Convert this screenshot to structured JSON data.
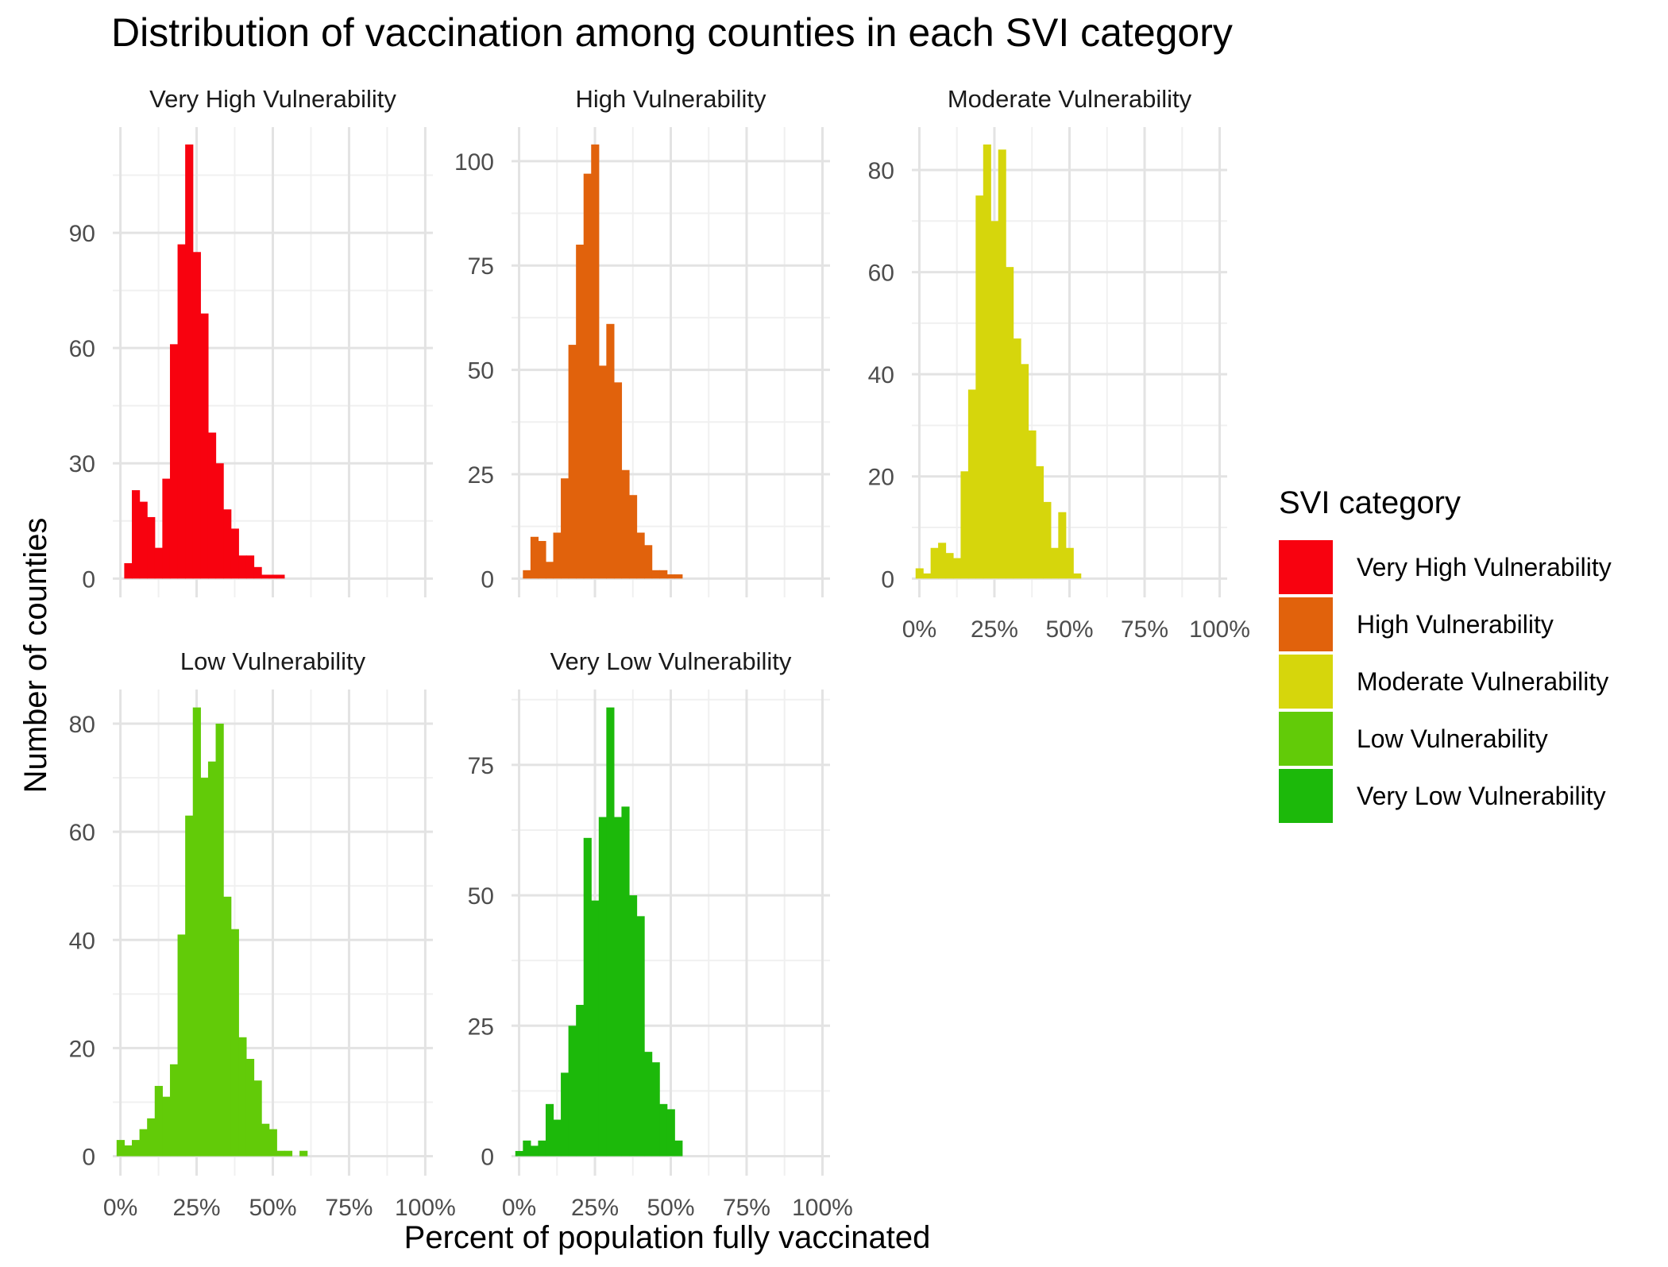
{
  "title": "Distribution of vaccination among counties in each SVI category",
  "x_axis_title": "Percent of population fully vaccinated",
  "y_axis_title": "Number of counties",
  "legend": {
    "title": "SVI category",
    "position": "right",
    "items": [
      {
        "label": "Very High Vulnerability",
        "color": "#F8020F"
      },
      {
        "label": "High Vulnerability",
        "color": "#E1620C"
      },
      {
        "label": "Moderate Vulnerability",
        "color": "#D6D60C"
      },
      {
        "label": "Low Vulnerability",
        "color": "#62CB08"
      },
      {
        "label": "Very Low Vulnerability",
        "color": "#1CB90A"
      }
    ]
  },
  "chart_data": {
    "type": "histogram",
    "layout": "facet_wrap 3 columns, free y scales",
    "bin_width": 2.5,
    "x_range": [
      -2.5,
      102.5
    ],
    "x_ticks": [
      0,
      25,
      50,
      75,
      100
    ],
    "x_tick_labels": [
      "0%",
      "25%",
      "50%",
      "75%",
      "100%"
    ],
    "grid": true,
    "panels": [
      {
        "name": "Very High Vulnerability",
        "color": "#F8020F",
        "y_range": [
          0,
          113
        ],
        "y_ticks": [
          0,
          30,
          60,
          90
        ],
        "bins": [
          {
            "x": 2.5,
            "count": 4
          },
          {
            "x": 5,
            "count": 23
          },
          {
            "x": 7.5,
            "count": 20
          },
          {
            "x": 10,
            "count": 16
          },
          {
            "x": 12.5,
            "count": 8
          },
          {
            "x": 15,
            "count": 26
          },
          {
            "x": 17.5,
            "count": 61
          },
          {
            "x": 20,
            "count": 87
          },
          {
            "x": 22.5,
            "count": 113
          },
          {
            "x": 25,
            "count": 85
          },
          {
            "x": 27.5,
            "count": 69
          },
          {
            "x": 30,
            "count": 38
          },
          {
            "x": 32.5,
            "count": 30
          },
          {
            "x": 35,
            "count": 18
          },
          {
            "x": 37.5,
            "count": 13
          },
          {
            "x": 40,
            "count": 6
          },
          {
            "x": 42.5,
            "count": 6
          },
          {
            "x": 45,
            "count": 3
          },
          {
            "x": 47.5,
            "count": 1
          },
          {
            "x": 50,
            "count": 1
          },
          {
            "x": 52.5,
            "count": 1
          }
        ]
      },
      {
        "name": "High Vulnerability",
        "color": "#E1620C",
        "y_range": [
          0,
          104
        ],
        "y_ticks": [
          0,
          25,
          50,
          75,
          100
        ],
        "bins": [
          {
            "x": 2.5,
            "count": 2
          },
          {
            "x": 5,
            "count": 10
          },
          {
            "x": 7.5,
            "count": 9
          },
          {
            "x": 10,
            "count": 4
          },
          {
            "x": 12.5,
            "count": 11
          },
          {
            "x": 15,
            "count": 24
          },
          {
            "x": 17.5,
            "count": 56
          },
          {
            "x": 20,
            "count": 80
          },
          {
            "x": 22.5,
            "count": 97
          },
          {
            "x": 25,
            "count": 104
          },
          {
            "x": 27.5,
            "count": 51
          },
          {
            "x": 30,
            "count": 61
          },
          {
            "x": 32.5,
            "count": 47
          },
          {
            "x": 35,
            "count": 26
          },
          {
            "x": 37.5,
            "count": 20
          },
          {
            "x": 40,
            "count": 11
          },
          {
            "x": 42.5,
            "count": 8
          },
          {
            "x": 45,
            "count": 2
          },
          {
            "x": 47.5,
            "count": 2
          },
          {
            "x": 50,
            "count": 1
          },
          {
            "x": 52.5,
            "count": 1
          }
        ]
      },
      {
        "name": "Moderate Vulnerability",
        "color": "#D6D60C",
        "y_range": [
          0,
          85
        ],
        "y_ticks": [
          0,
          20,
          40,
          60,
          80
        ],
        "bins": [
          {
            "x": 0,
            "count": 2
          },
          {
            "x": 2.5,
            "count": 1
          },
          {
            "x": 5,
            "count": 6
          },
          {
            "x": 7.5,
            "count": 7
          },
          {
            "x": 10,
            "count": 5
          },
          {
            "x": 12.5,
            "count": 4
          },
          {
            "x": 15,
            "count": 21
          },
          {
            "x": 17.5,
            "count": 37
          },
          {
            "x": 20,
            "count": 75
          },
          {
            "x": 22.5,
            "count": 85
          },
          {
            "x": 25,
            "count": 70
          },
          {
            "x": 27.5,
            "count": 84
          },
          {
            "x": 30,
            "count": 61
          },
          {
            "x": 32.5,
            "count": 47
          },
          {
            "x": 35,
            "count": 42
          },
          {
            "x": 37.5,
            "count": 29
          },
          {
            "x": 40,
            "count": 22
          },
          {
            "x": 42.5,
            "count": 15
          },
          {
            "x": 45,
            "count": 6
          },
          {
            "x": 47.5,
            "count": 13
          },
          {
            "x": 50,
            "count": 6
          },
          {
            "x": 52.5,
            "count": 1
          }
        ]
      },
      {
        "name": "Low Vulnerability",
        "color": "#62CB08",
        "y_range": [
          0,
          83
        ],
        "y_ticks": [
          0,
          20,
          40,
          60,
          80
        ],
        "bins": [
          {
            "x": 0,
            "count": 3
          },
          {
            "x": 2.5,
            "count": 2
          },
          {
            "x": 5,
            "count": 3
          },
          {
            "x": 7.5,
            "count": 5
          },
          {
            "x": 10,
            "count": 7
          },
          {
            "x": 12.5,
            "count": 13
          },
          {
            "x": 15,
            "count": 11
          },
          {
            "x": 17.5,
            "count": 17
          },
          {
            "x": 20,
            "count": 41
          },
          {
            "x": 22.5,
            "count": 63
          },
          {
            "x": 25,
            "count": 83
          },
          {
            "x": 27.5,
            "count": 70
          },
          {
            "x": 30,
            "count": 73
          },
          {
            "x": 32.5,
            "count": 80
          },
          {
            "x": 35,
            "count": 48
          },
          {
            "x": 37.5,
            "count": 42
          },
          {
            "x": 40,
            "count": 22
          },
          {
            "x": 42.5,
            "count": 18
          },
          {
            "x": 45,
            "count": 14
          },
          {
            "x": 47.5,
            "count": 6
          },
          {
            "x": 50,
            "count": 5
          },
          {
            "x": 52.5,
            "count": 1
          },
          {
            "x": 55,
            "count": 1
          },
          {
            "x": 57.5,
            "count": 0
          },
          {
            "x": 60,
            "count": 1
          }
        ]
      },
      {
        "name": "Very Low Vulnerability",
        "color": "#1CB90A",
        "y_range": [
          0,
          86
        ],
        "y_ticks": [
          0,
          25,
          50,
          75
        ],
        "bins": [
          {
            "x": 0,
            "count": 1
          },
          {
            "x": 2.5,
            "count": 3
          },
          {
            "x": 5,
            "count": 2
          },
          {
            "x": 7.5,
            "count": 3
          },
          {
            "x": 10,
            "count": 10
          },
          {
            "x": 12.5,
            "count": 7
          },
          {
            "x": 15,
            "count": 16
          },
          {
            "x": 17.5,
            "count": 25
          },
          {
            "x": 20,
            "count": 29
          },
          {
            "x": 22.5,
            "count": 61
          },
          {
            "x": 25,
            "count": 49
          },
          {
            "x": 27.5,
            "count": 65
          },
          {
            "x": 30,
            "count": 86
          },
          {
            "x": 32.5,
            "count": 65
          },
          {
            "x": 35,
            "count": 67
          },
          {
            "x": 37.5,
            "count": 50
          },
          {
            "x": 40,
            "count": 46
          },
          {
            "x": 42.5,
            "count": 20
          },
          {
            "x": 45,
            "count": 18
          },
          {
            "x": 47.5,
            "count": 10
          },
          {
            "x": 50,
            "count": 9
          },
          {
            "x": 52.5,
            "count": 3
          }
        ]
      }
    ]
  }
}
